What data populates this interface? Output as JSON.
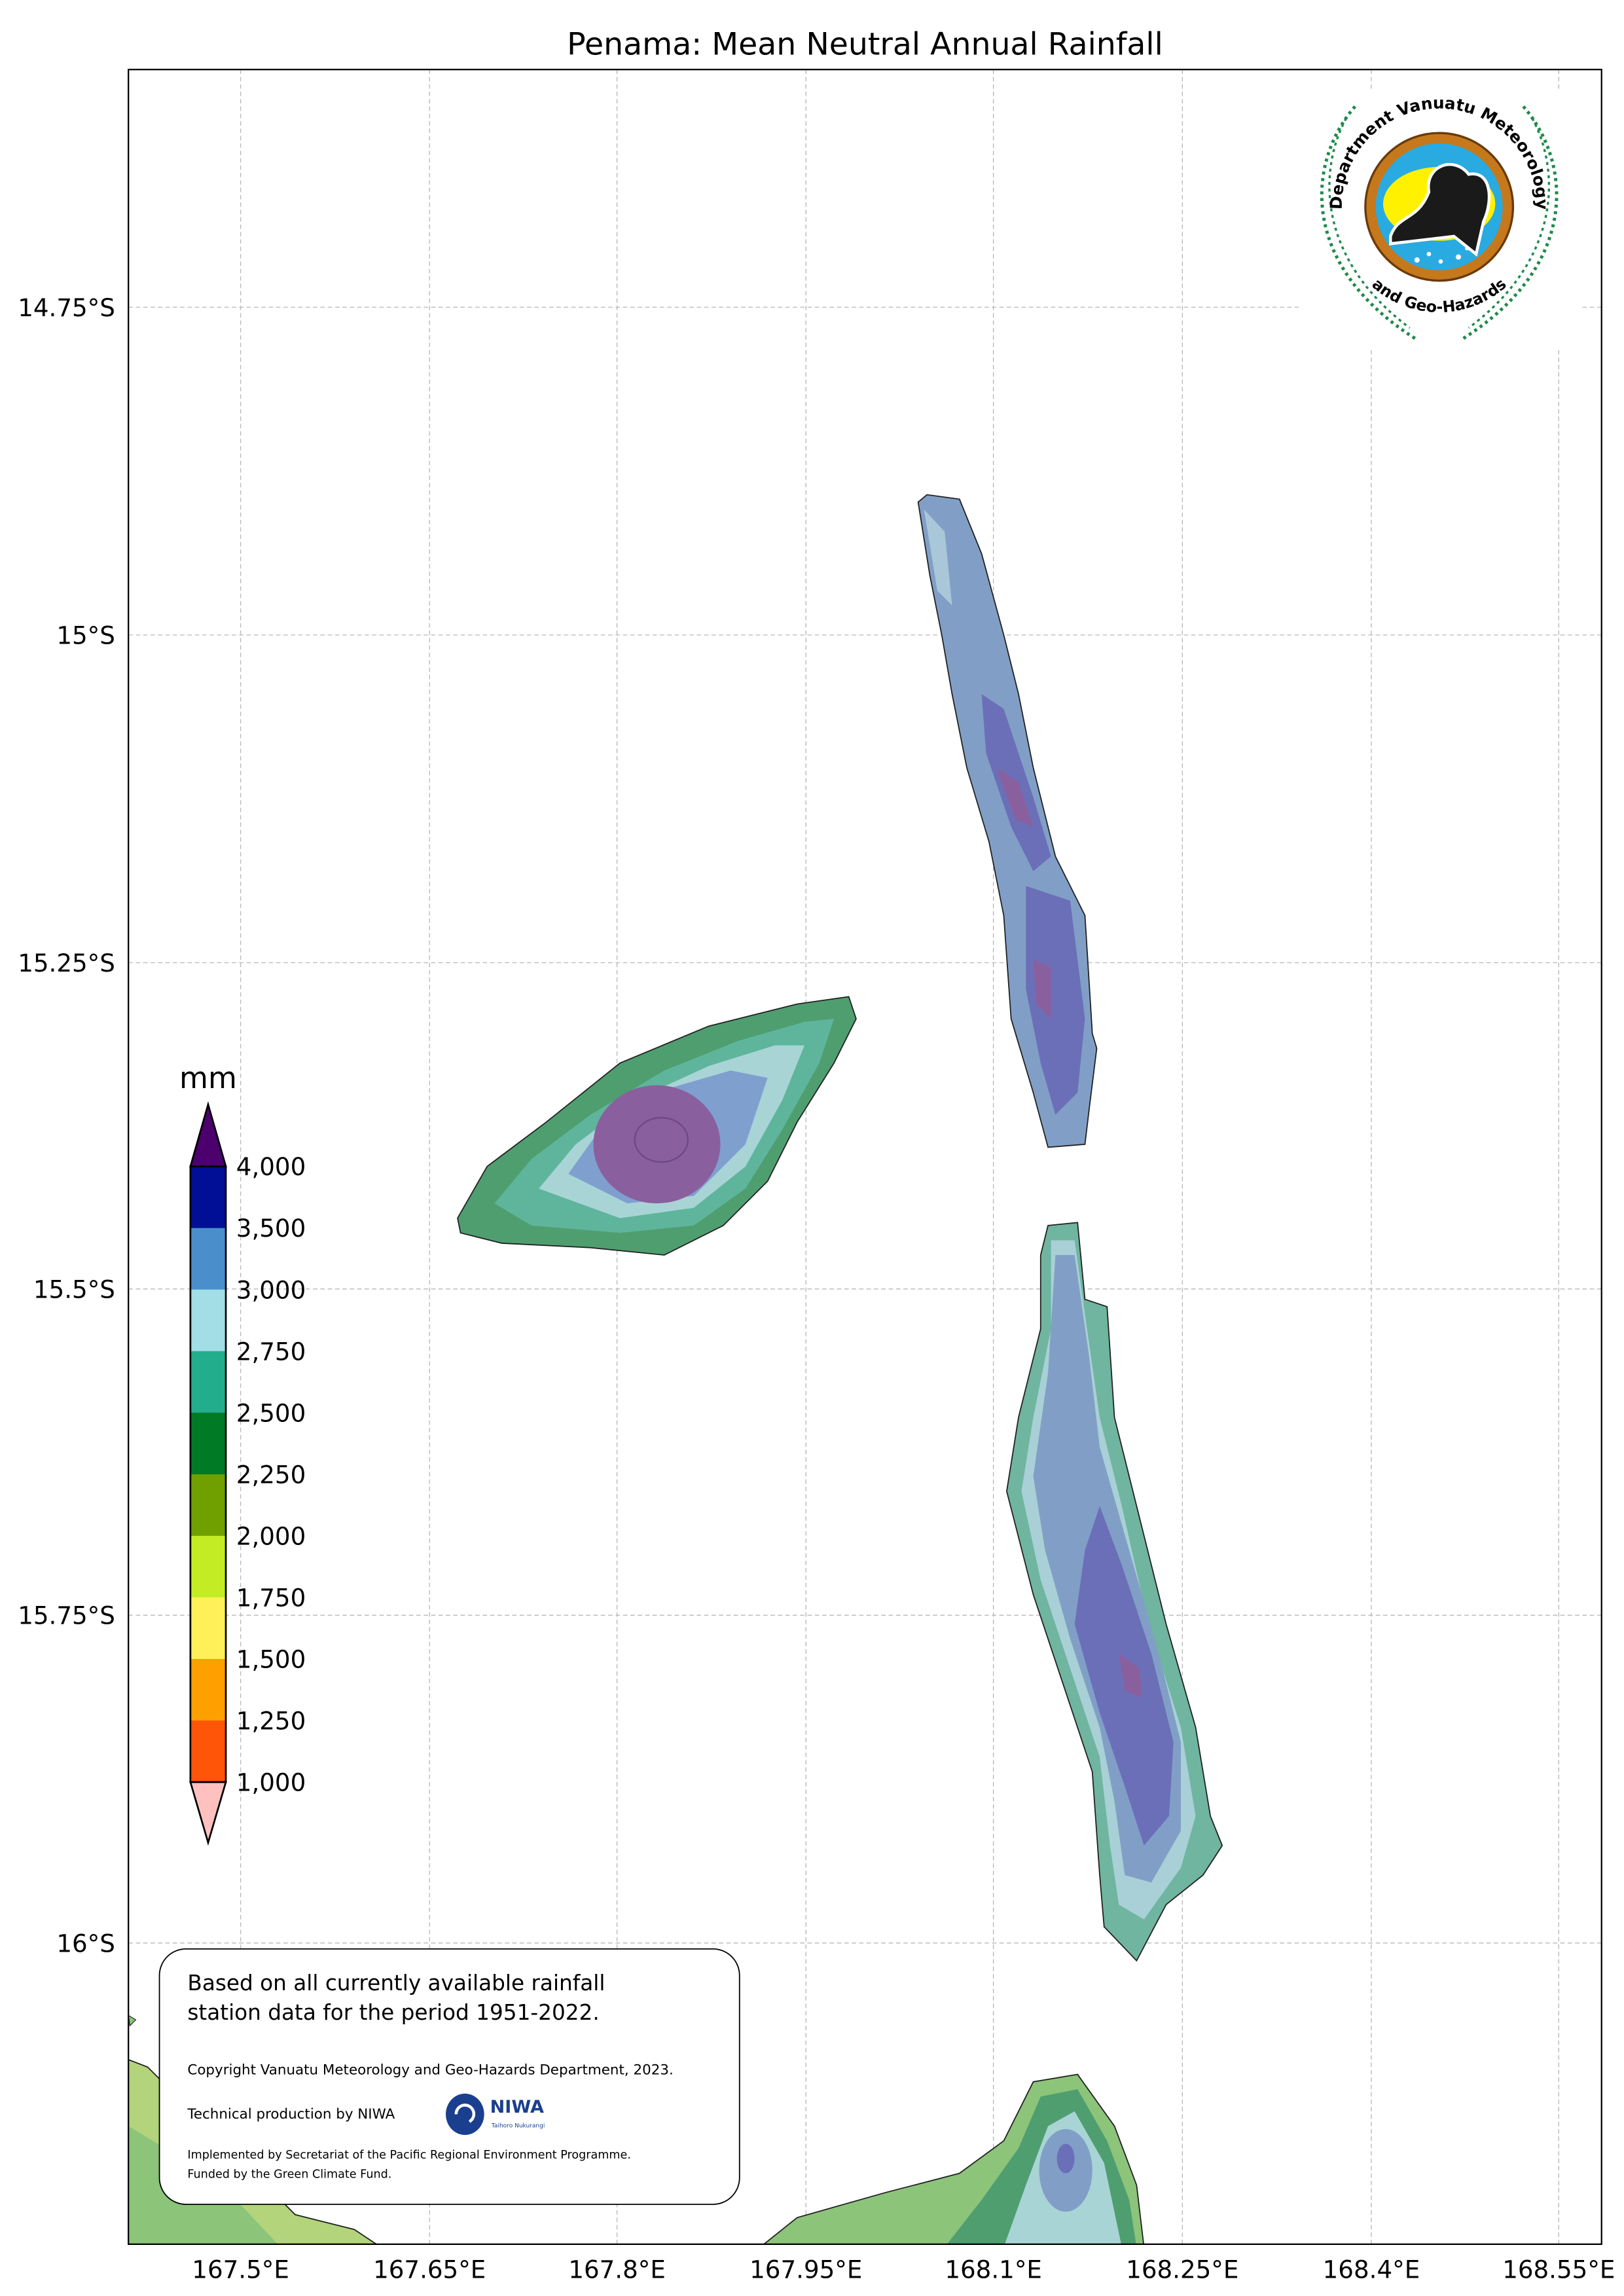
{
  "title": "Penama: Mean Neutral Annual Rainfall",
  "axes": {
    "x_ticks": [
      "167.5°E",
      "167.65°E",
      "167.8°E",
      "167.95°E",
      "168.1°E",
      "168.25°E",
      "168.4°E",
      "168.55°E"
    ],
    "y_ticks": [
      "14.75°S",
      "15°S",
      "15.25°S",
      "15.5°S",
      "15.75°S",
      "16°S"
    ]
  },
  "colorbar": {
    "unit": "mm",
    "labels": [
      "4,000",
      "3,500",
      "3,000",
      "2,750",
      "2,500",
      "2,250",
      "2,000",
      "1,750",
      "1,500",
      "1,250",
      "1,000"
    ],
    "colors": [
      "#000f96",
      "#4a8fcc",
      "#a3dde6",
      "#22ad8c",
      "#007a25",
      "#6fa000",
      "#c4ec24",
      "#fff05a",
      "#ff9f00",
      "#ff5508"
    ],
    "over_color": "#4c006e",
    "under_color": "#ffc0c0"
  },
  "logo": {
    "top_text": "Department Vanuatu Meteorology",
    "bottom_text": "and Geo-Hazards"
  },
  "info_box": {
    "line1": "Based on all currently available rainfall",
    "line2": "station data for the period 1951-2022.",
    "copyright": "Copyright Vanuatu Meteorology and Geo-Hazards Department, 2023.",
    "technical": "Technical production by NIWA",
    "niwa_logo": "NIWA",
    "niwa_sub": "Taihoro Nukurangi",
    "implemented": "Implemented by Secretariat of the Pacific Regional Environment Programme.",
    "funded": "Funded by the Green Climate Fund."
  }
}
